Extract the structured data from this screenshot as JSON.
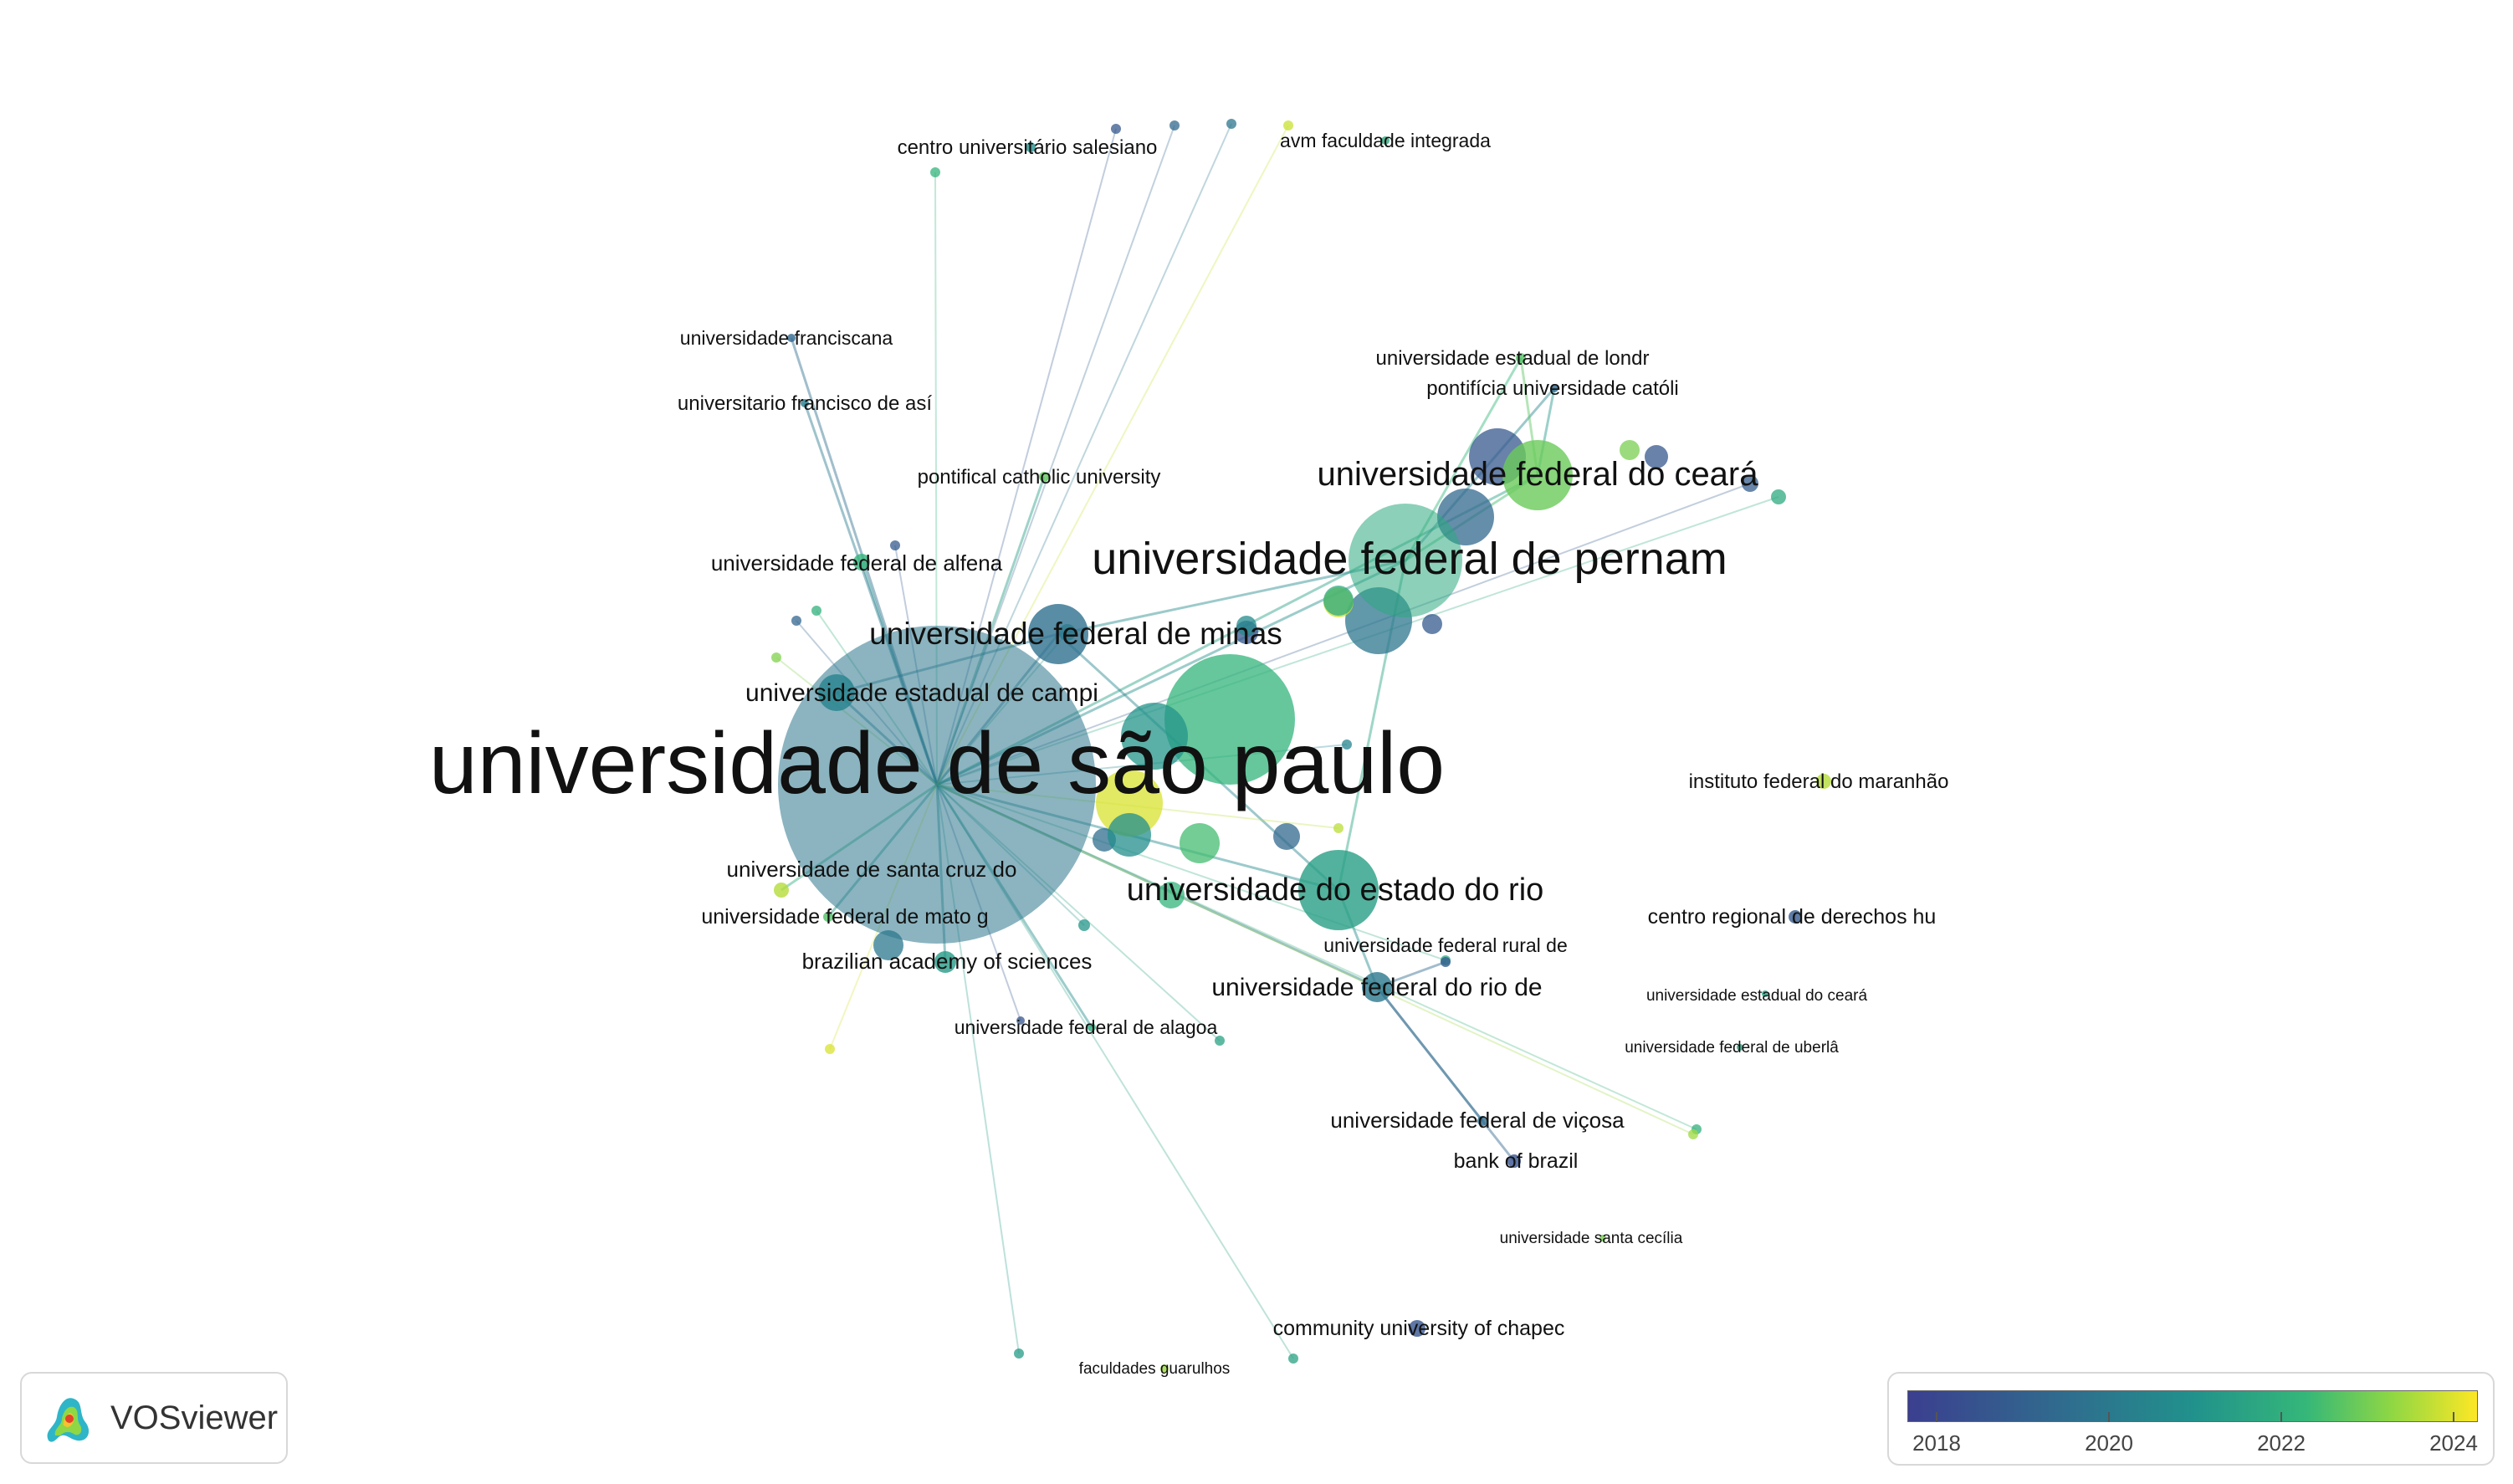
{
  "app": {
    "name": "VOSviewer"
  },
  "legend": {
    "years": [
      "2018",
      "2020",
      "2022",
      "2024"
    ],
    "palette": [
      "#3b3f8f",
      "#31688e",
      "#21918c",
      "#35b779",
      "#8fd744",
      "#fde725"
    ]
  },
  "nodes": [
    {
      "id": "usp",
      "label": "universidade de são paulo",
      "year": 2019.5
    },
    {
      "id": "ufpe",
      "label": "universidade federal de pernam",
      "year": 2021.2
    },
    {
      "id": "ufc",
      "label": "universidade federal do ceará",
      "year": 2022.3
    },
    {
      "id": "ufmg",
      "label": "universidade federal de minas",
      "year": 2019.3
    },
    {
      "id": "unicamp",
      "label": "universidade estadual de campi",
      "year": 2020.0
    },
    {
      "id": "uerj",
      "label": "universidade do estado do rio",
      "year": 2020.9
    },
    {
      "id": "ufrj",
      "label": "universidade federal do rio de",
      "year": 2019.6
    },
    {
      "id": "ufrrj",
      "label": "universidade federal rural de",
      "year": 2018.6
    },
    {
      "id": "unisc",
      "label": "universidade de santa cruz do",
      "year": 2023.3
    },
    {
      "id": "ufmt",
      "label": "universidade federal de mato g",
      "year": 2022.0
    },
    {
      "id": "bas",
      "label": "brazilian academy of sciences",
      "year": 2020.8
    },
    {
      "id": "ufal",
      "label": "universidade federal de alagoa",
      "year": 2021.2
    },
    {
      "id": "ufv",
      "label": "universidade federal de viçosa",
      "year": 2019.2
    },
    {
      "id": "bb",
      "label": "bank of brazil",
      "year": 2018.2
    },
    {
      "id": "unifal",
      "label": "universidade federal de alfena",
      "year": 2021.5
    },
    {
      "id": "pcu",
      "label": "pontifical catholic university",
      "year": 2022.2
    },
    {
      "id": "ufn",
      "label": "universidade franciscana",
      "year": 2019.0
    },
    {
      "id": "usf",
      "label": "universitario francisco de así",
      "year": 2019.8
    },
    {
      "id": "ucs",
      "label": "centro universitário salesiano",
      "year": 2020.4
    },
    {
      "id": "avm",
      "label": "avm faculdade integrada",
      "year": 2021.2
    },
    {
      "id": "uel",
      "label": "universidade estadual de londr",
      "year": 2022.0
    },
    {
      "id": "puc",
      "label": "pontifícia universidade católi",
      "year": 2019.0
    },
    {
      "id": "ifma",
      "label": "instituto federal do maranhão",
      "year": 2023.3
    },
    {
      "id": "crdh",
      "label": "centro regional de derechos hu",
      "year": 2018.5
    },
    {
      "id": "uece",
      "label": "universidade estadual do ceará",
      "year": 2021.0
    },
    {
      "id": "ufu",
      "label": "universidade federal de uberlâ",
      "year": 2021.0
    },
    {
      "id": "usc",
      "label": "universidade santa cecília",
      "year": 2022.5
    },
    {
      "id": "unochapeco",
      "label": "community university of chapec",
      "year": 2018.3
    },
    {
      "id": "fg",
      "label": "faculdades guarulhos",
      "year": 2023.0
    }
  ],
  "unlabeled_nodes": [
    {
      "year": 2018.4
    },
    {
      "year": 2019.0
    },
    {
      "year": 2019.5
    },
    {
      "year": 2023.6
    },
    {
      "year": 2021.5
    },
    {
      "year": 2020.6
    },
    {
      "year": 2023.8
    },
    {
      "year": 2021.0
    },
    {
      "year": 2018.3
    },
    {
      "year": 2021.2
    },
    {
      "year": 2018.5
    },
    {
      "year": 2020.2
    },
    {
      "year": 2019.2
    },
    {
      "year": 2021.8
    },
    {
      "year": 2020.4
    },
    {
      "year": 2019.0
    },
    {
      "year": 2021.5
    },
    {
      "year": 2023.4
    },
    {
      "year": 2022.5
    },
    {
      "year": 2018.4
    },
    {
      "year": 2018.6
    },
    {
      "year": 2021.2
    },
    {
      "year": 2020.0
    },
    {
      "year": 2019.6
    },
    {
      "year": 2018.9
    },
    {
      "year": 2021.4
    },
    {
      "year": 2022.6
    },
    {
      "year": 2018.5
    },
    {
      "year": 2021.4
    },
    {
      "year": 2023.0
    },
    {
      "year": 2020.8
    },
    {
      "year": 2021.0
    }
  ],
  "edges": [
    [
      "usp",
      "ufpe"
    ],
    [
      "usp",
      "ufmg"
    ],
    [
      "usp",
      "unicamp"
    ],
    [
      "usp",
      "uerj"
    ],
    [
      "usp",
      "ufrj"
    ],
    [
      "usp",
      "unisc"
    ],
    [
      "usp",
      "ufmt"
    ],
    [
      "usp",
      "bas"
    ],
    [
      "usp",
      "ufal"
    ],
    [
      "usp",
      "unifal"
    ],
    [
      "usp",
      "pcu"
    ],
    [
      "usp",
      "ufn"
    ],
    [
      "usp",
      "usf"
    ],
    [
      "usp",
      "ufc"
    ],
    [
      "ufpe",
      "ufc"
    ],
    [
      "ufpe",
      "uel"
    ],
    [
      "ufpe",
      "puc"
    ],
    [
      "ufpe",
      "ufmg"
    ],
    [
      "ufpe",
      "uerj"
    ],
    [
      "ufmg",
      "unicamp"
    ],
    [
      "ufmg",
      "uerj"
    ],
    [
      "uerj",
      "ufrj"
    ],
    [
      "ufrj",
      "ufv"
    ],
    [
      "ufrj",
      "bb"
    ],
    [
      "ufrj",
      "ufrrj"
    ],
    [
      "ufc",
      "uel"
    ],
    [
      "ufc",
      "puc"
    ]
  ]
}
